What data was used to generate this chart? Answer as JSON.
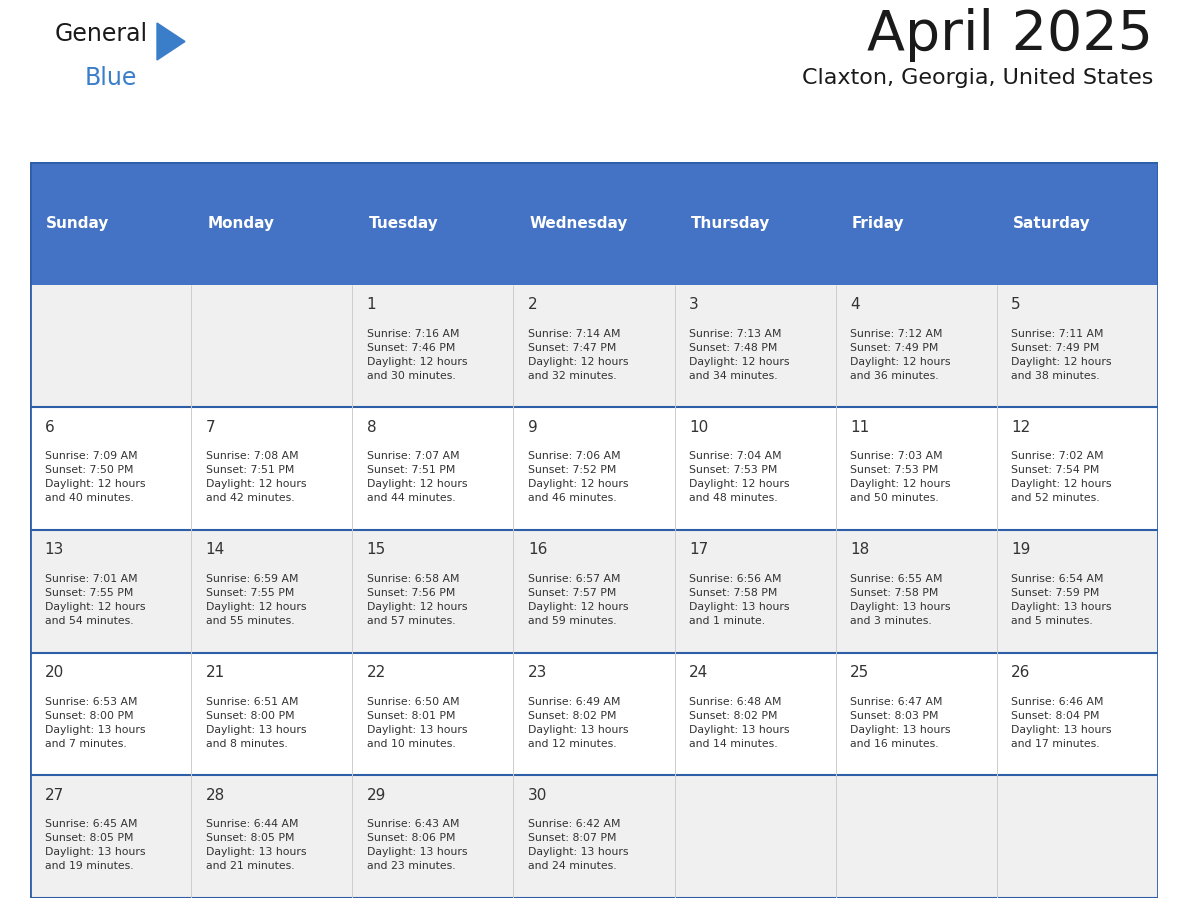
{
  "title": "April 2025",
  "subtitle": "Claxton, Georgia, United States",
  "header_bg": "#4472C4",
  "header_text": "#FFFFFF",
  "row_bg_odd": "#F0F0F0",
  "row_bg_even": "#FFFFFF",
  "day_headers": [
    "Sunday",
    "Monday",
    "Tuesday",
    "Wednesday",
    "Thursday",
    "Friday",
    "Saturday"
  ],
  "weeks": [
    [
      {
        "day": "",
        "info": ""
      },
      {
        "day": "",
        "info": ""
      },
      {
        "day": "1",
        "info": "Sunrise: 7:16 AM\nSunset: 7:46 PM\nDaylight: 12 hours\nand 30 minutes."
      },
      {
        "day": "2",
        "info": "Sunrise: 7:14 AM\nSunset: 7:47 PM\nDaylight: 12 hours\nand 32 minutes."
      },
      {
        "day": "3",
        "info": "Sunrise: 7:13 AM\nSunset: 7:48 PM\nDaylight: 12 hours\nand 34 minutes."
      },
      {
        "day": "4",
        "info": "Sunrise: 7:12 AM\nSunset: 7:49 PM\nDaylight: 12 hours\nand 36 minutes."
      },
      {
        "day": "5",
        "info": "Sunrise: 7:11 AM\nSunset: 7:49 PM\nDaylight: 12 hours\nand 38 minutes."
      }
    ],
    [
      {
        "day": "6",
        "info": "Sunrise: 7:09 AM\nSunset: 7:50 PM\nDaylight: 12 hours\nand 40 minutes."
      },
      {
        "day": "7",
        "info": "Sunrise: 7:08 AM\nSunset: 7:51 PM\nDaylight: 12 hours\nand 42 minutes."
      },
      {
        "day": "8",
        "info": "Sunrise: 7:07 AM\nSunset: 7:51 PM\nDaylight: 12 hours\nand 44 minutes."
      },
      {
        "day": "9",
        "info": "Sunrise: 7:06 AM\nSunset: 7:52 PM\nDaylight: 12 hours\nand 46 minutes."
      },
      {
        "day": "10",
        "info": "Sunrise: 7:04 AM\nSunset: 7:53 PM\nDaylight: 12 hours\nand 48 minutes."
      },
      {
        "day": "11",
        "info": "Sunrise: 7:03 AM\nSunset: 7:53 PM\nDaylight: 12 hours\nand 50 minutes."
      },
      {
        "day": "12",
        "info": "Sunrise: 7:02 AM\nSunset: 7:54 PM\nDaylight: 12 hours\nand 52 minutes."
      }
    ],
    [
      {
        "day": "13",
        "info": "Sunrise: 7:01 AM\nSunset: 7:55 PM\nDaylight: 12 hours\nand 54 minutes."
      },
      {
        "day": "14",
        "info": "Sunrise: 6:59 AM\nSunset: 7:55 PM\nDaylight: 12 hours\nand 55 minutes."
      },
      {
        "day": "15",
        "info": "Sunrise: 6:58 AM\nSunset: 7:56 PM\nDaylight: 12 hours\nand 57 minutes."
      },
      {
        "day": "16",
        "info": "Sunrise: 6:57 AM\nSunset: 7:57 PM\nDaylight: 12 hours\nand 59 minutes."
      },
      {
        "day": "17",
        "info": "Sunrise: 6:56 AM\nSunset: 7:58 PM\nDaylight: 13 hours\nand 1 minute."
      },
      {
        "day": "18",
        "info": "Sunrise: 6:55 AM\nSunset: 7:58 PM\nDaylight: 13 hours\nand 3 minutes."
      },
      {
        "day": "19",
        "info": "Sunrise: 6:54 AM\nSunset: 7:59 PM\nDaylight: 13 hours\nand 5 minutes."
      }
    ],
    [
      {
        "day": "20",
        "info": "Sunrise: 6:53 AM\nSunset: 8:00 PM\nDaylight: 13 hours\nand 7 minutes."
      },
      {
        "day": "21",
        "info": "Sunrise: 6:51 AM\nSunset: 8:00 PM\nDaylight: 13 hours\nand 8 minutes."
      },
      {
        "day": "22",
        "info": "Sunrise: 6:50 AM\nSunset: 8:01 PM\nDaylight: 13 hours\nand 10 minutes."
      },
      {
        "day": "23",
        "info": "Sunrise: 6:49 AM\nSunset: 8:02 PM\nDaylight: 13 hours\nand 12 minutes."
      },
      {
        "day": "24",
        "info": "Sunrise: 6:48 AM\nSunset: 8:02 PM\nDaylight: 13 hours\nand 14 minutes."
      },
      {
        "day": "25",
        "info": "Sunrise: 6:47 AM\nSunset: 8:03 PM\nDaylight: 13 hours\nand 16 minutes."
      },
      {
        "day": "26",
        "info": "Sunrise: 6:46 AM\nSunset: 8:04 PM\nDaylight: 13 hours\nand 17 minutes."
      }
    ],
    [
      {
        "day": "27",
        "info": "Sunrise: 6:45 AM\nSunset: 8:05 PM\nDaylight: 13 hours\nand 19 minutes."
      },
      {
        "day": "28",
        "info": "Sunrise: 6:44 AM\nSunset: 8:05 PM\nDaylight: 13 hours\nand 21 minutes."
      },
      {
        "day": "29",
        "info": "Sunrise: 6:43 AM\nSunset: 8:06 PM\nDaylight: 13 hours\nand 23 minutes."
      },
      {
        "day": "30",
        "info": "Sunrise: 6:42 AM\nSunset: 8:07 PM\nDaylight: 13 hours\nand 24 minutes."
      },
      {
        "day": "",
        "info": ""
      },
      {
        "day": "",
        "info": ""
      },
      {
        "day": "",
        "info": ""
      }
    ]
  ],
  "logo_color_general": "#1a1a1a",
  "logo_color_blue": "#3A7DC9",
  "logo_triangle_color": "#3A7DC9",
  "title_color": "#1a1a1a",
  "subtitle_color": "#1a1a1a",
  "divider_color": "#2E5EA8",
  "cell_text_color": "#333333",
  "fig_width": 11.88,
  "fig_height": 9.18,
  "dpi": 100
}
